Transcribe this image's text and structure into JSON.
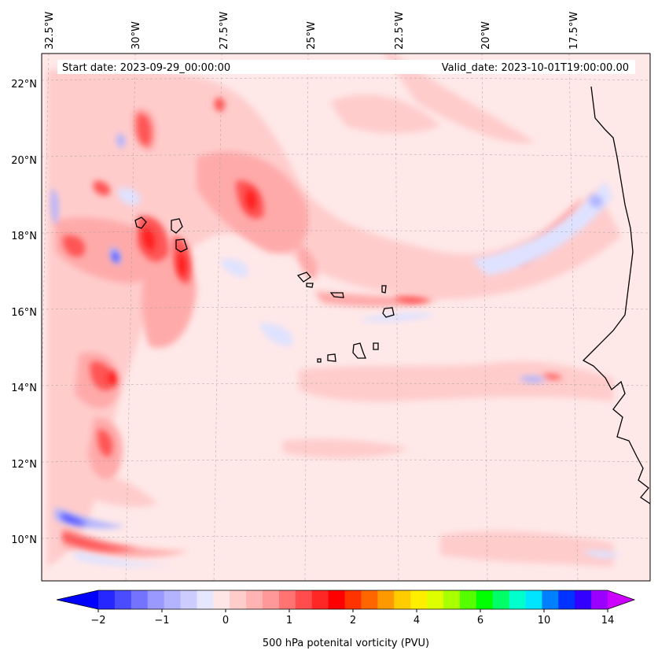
{
  "header": {
    "start_date": "Start date: 2023-09-29_00:00:00",
    "valid_date": "Valid_date: 2023-10-01T19:00:00.00"
  },
  "map": {
    "lon_labels": [
      "32.5°W",
      "30°W",
      "27.5°W",
      "25°W",
      "22.5°W",
      "20°W",
      "17.5°W"
    ],
    "lat_labels": [
      "22°N",
      "20°N",
      "18°N",
      "16°N",
      "14°N",
      "12°N",
      "10°N"
    ],
    "field": "500 hPa potential vorticity",
    "colors": {
      "background_pv": "#ffe8e8",
      "light_pink": "#ffcccc",
      "pink": "#ffaaaa",
      "red_mid": "#ff7777",
      "red": "#ff3333",
      "light_blue": "#dde0ff",
      "blue_mid": "#aab0ff",
      "blue": "#3333ff"
    }
  },
  "colorbar": {
    "label": "500 hPa potenital vorticity (PVU)",
    "tick_labels": [
      "−2",
      "−1",
      "0",
      "1",
      "2",
      "4",
      "6",
      "10",
      "14"
    ],
    "colors": [
      "#0000ff",
      "#2626ff",
      "#4c4cff",
      "#7373ff",
      "#9999ff",
      "#b3b3ff",
      "#ccccff",
      "#e6e6ff",
      "#ffe6e6",
      "#ffcccc",
      "#ffb3b3",
      "#ff9999",
      "#ff7373",
      "#ff4c4c",
      "#ff2626",
      "#ff0000",
      "#ff3300",
      "#ff6600",
      "#ff9900",
      "#ffcc00",
      "#ffee00",
      "#ddff00",
      "#aaff00",
      "#55ff00",
      "#00ff00",
      "#00ff66",
      "#00ffcc",
      "#00e5ff",
      "#0080ff",
      "#0033ff",
      "#3300ff",
      "#9900ff",
      "#cc00ff"
    ]
  }
}
